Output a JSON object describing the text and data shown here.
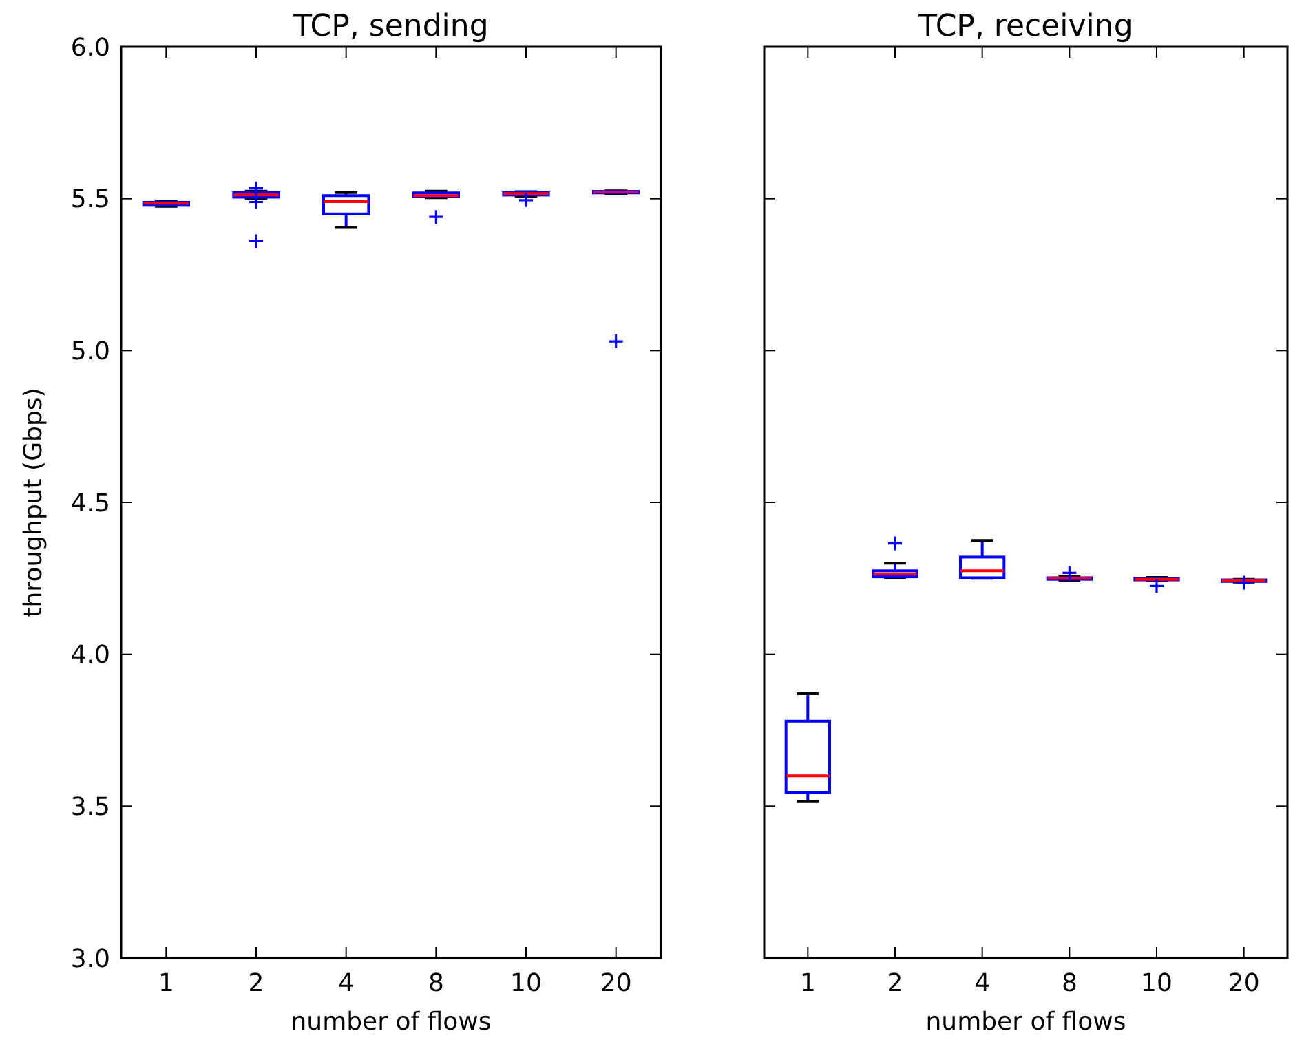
{
  "chart_data": [
    {
      "type": "box",
      "title": "TCP, sending",
      "xlabel": "number of flows",
      "ylabel": "throughput (Gbps)",
      "categories": [
        "1",
        "2",
        "4",
        "8",
        "10",
        "20"
      ],
      "color": "#0000ff",
      "ylim": [
        3.0,
        6.0
      ],
      "yticks": [
        {
          "value": 3.0,
          "label": "3.0"
        },
        {
          "value": 3.5,
          "label": "3.5"
        },
        {
          "value": 4.0,
          "label": "4.0"
        },
        {
          "value": 4.5,
          "label": "4.5"
        },
        {
          "value": 5.0,
          "label": "5.0"
        },
        {
          "value": 5.5,
          "label": "5.5"
        },
        {
          "value": 6.0,
          "label": "6.0"
        }
      ],
      "boxes": [
        {
          "low": 5.475,
          "q1": 5.478,
          "median": 5.485,
          "q3": 5.488,
          "high": 5.491
        },
        {
          "low": 5.5,
          "q1": 5.505,
          "median": 5.512,
          "q3": 5.52,
          "high": 5.525,
          "outliers": [
            5.534,
            5.489,
            5.36
          ]
        },
        {
          "low": 5.405,
          "q1": 5.45,
          "median": 5.49,
          "q3": 5.51,
          "high": 5.52
        },
        {
          "low": 5.503,
          "q1": 5.506,
          "median": 5.51,
          "q3": 5.519,
          "high": 5.525,
          "outliers": [
            5.44
          ]
        },
        {
          "low": 5.508,
          "q1": 5.512,
          "median": 5.517,
          "q3": 5.52,
          "high": 5.523,
          "outliers": [
            5.495
          ]
        },
        {
          "low": 5.517,
          "q1": 5.519,
          "median": 5.522,
          "q3": 5.524,
          "high": 5.526,
          "outliers": [
            5.03
          ]
        }
      ]
    },
    {
      "type": "box",
      "title": "TCP, receiving",
      "xlabel": "number of flows",
      "categories": [
        "1",
        "2",
        "4",
        "8",
        "10",
        "20"
      ],
      "color": "#0000ff",
      "ylim": [
        3.0,
        6.0
      ],
      "yticks": [
        {
          "value": 3.0,
          "label": null
        },
        {
          "value": 3.5,
          "label": null
        },
        {
          "value": 4.0,
          "label": null
        },
        {
          "value": 4.5,
          "label": null
        },
        {
          "value": 5.0,
          "label": null
        },
        {
          "value": 5.5,
          "label": null
        },
        {
          "value": 6.0,
          "label": null
        }
      ],
      "tick_labels": "x",
      "boxes": [
        {
          "low": 3.515,
          "q1": 3.545,
          "median": 3.6,
          "q3": 3.78,
          "high": 3.87
        },
        {
          "low": 4.252,
          "q1": 4.255,
          "median": 4.265,
          "q3": 4.275,
          "high": 4.3,
          "outliers": [
            4.365
          ]
        },
        {
          "low": 4.25,
          "q1": 4.252,
          "median": 4.275,
          "q3": 4.32,
          "high": 4.375
        },
        {
          "low": 4.243,
          "q1": 4.247,
          "median": 4.25,
          "q3": 4.252,
          "high": 4.256,
          "outliers": [
            4.268
          ]
        },
        {
          "low": 4.242,
          "q1": 4.245,
          "median": 4.247,
          "q3": 4.25,
          "high": 4.253,
          "outliers": [
            4.225
          ]
        },
        {
          "low": 4.238,
          "q1": 4.24,
          "median": 4.243,
          "q3": 4.245,
          "high": 4.247,
          "outliers": [
            4.236
          ]
        }
      ]
    }
  ]
}
